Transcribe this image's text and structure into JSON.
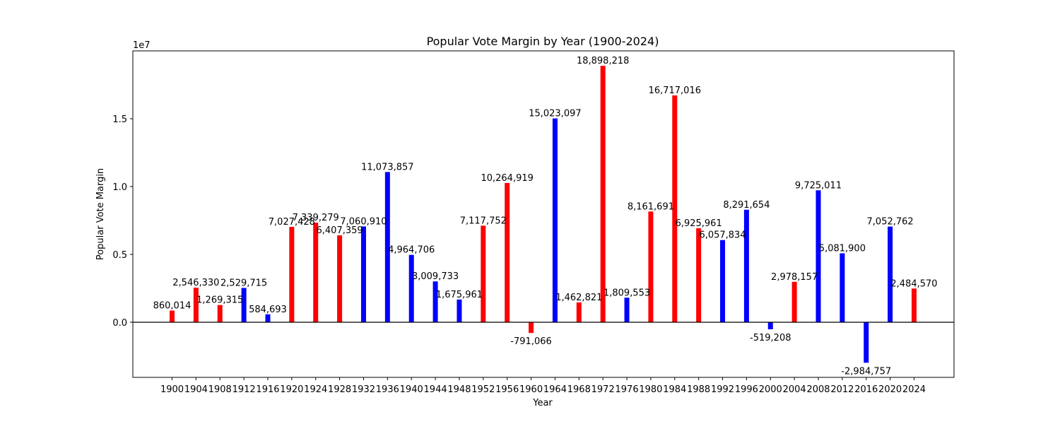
{
  "chart_data": {
    "type": "bar",
    "title": "Popular Vote Margin by Year (1900-2024)",
    "xlabel": "Year",
    "ylabel": "Popular Vote Margin",
    "y_offset_label": "1e7",
    "ylim": [
      -4000000,
      20000000
    ],
    "y_ticks": [
      0,
      5000000,
      10000000,
      15000000
    ],
    "y_tick_labels": [
      "0.0",
      "0.5",
      "1.0",
      "1.5"
    ],
    "grid": false,
    "legend": "none",
    "zero_line": true,
    "colors": {
      "red": "#ff0000",
      "blue": "#0000ff",
      "axis": "#000000"
    },
    "categories": [
      "1900",
      "1904",
      "1908",
      "1912",
      "1916",
      "1920",
      "1924",
      "1928",
      "1932",
      "1936",
      "1940",
      "1944",
      "1948",
      "1952",
      "1956",
      "1960",
      "1964",
      "1968",
      "1972",
      "1976",
      "1980",
      "1984",
      "1988",
      "1992",
      "1996",
      "2000",
      "2004",
      "2008",
      "2012",
      "2016",
      "2020",
      "2024"
    ],
    "values": [
      860014,
      2546330,
      1269315,
      2529715,
      584693,
      7027428,
      7339279,
      6407359,
      7060910,
      11073857,
      4964706,
      3009733,
      1675961,
      7117752,
      10264919,
      -791066,
      15023097,
      1462821,
      18898218,
      1809553,
      8161691,
      16717016,
      6925961,
      6057834,
      8291654,
      -519208,
      2978157,
      9725011,
      5081900,
      -2984757,
      7052762,
      2484570
    ],
    "value_labels": [
      "860,014",
      "2,546,330",
      "1,269,315",
      "2,529,715",
      "584,693",
      "7,027,428",
      "7,339,279",
      "6,407,359",
      "7,060,910",
      "11,073,857",
      "4,964,706",
      "3,009,733",
      "1,675,961",
      "7,117,752",
      "10,264,919",
      "-791,066",
      "15,023,097",
      "1,462,821",
      "18,898,218",
      "1,809,553",
      "8,161,691",
      "16,717,016",
      "6,925,961",
      "6,057,834",
      "8,291,654",
      "-519,208",
      "2,978,157",
      "9,725,011",
      "5,081,900",
      "-2,984,757",
      "7,052,762",
      "2,484,570"
    ],
    "bar_colors": [
      "red",
      "red",
      "red",
      "blue",
      "blue",
      "red",
      "red",
      "red",
      "blue",
      "blue",
      "blue",
      "blue",
      "blue",
      "red",
      "red",
      "red",
      "blue",
      "red",
      "red",
      "blue",
      "red",
      "red",
      "red",
      "blue",
      "blue",
      "blue",
      "red",
      "blue",
      "blue",
      "blue",
      "blue",
      "red"
    ]
  }
}
